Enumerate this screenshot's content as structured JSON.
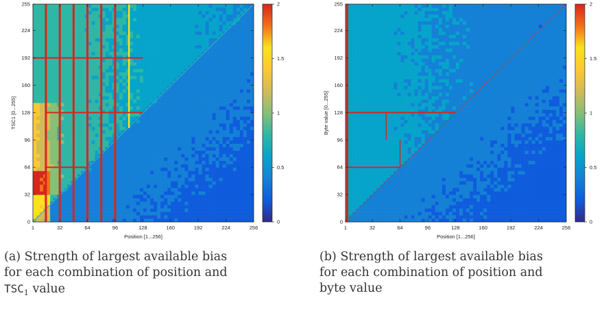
{
  "colormap": [
    "#352a87",
    "#0f5cdd",
    "#1481d6",
    "#06a4ca",
    "#2eb7a4",
    "#87bf77",
    "#d1bb59",
    "#fec832",
    "#f9e21c",
    "#f46f1b",
    "#d7261c"
  ],
  "chart_data": [
    {
      "type": "heatmap",
      "xlabel": "Position [1...256]",
      "ylabel": "TSC1 [0...255]",
      "xlim": [
        1,
        256
      ],
      "ylim": [
        0,
        255
      ],
      "x_ticks": [
        "1",
        "32",
        "64",
        "96",
        "128",
        "160",
        "192",
        "224",
        "256"
      ],
      "y_ticks": [
        "0",
        "32",
        "64",
        "96",
        "128",
        "160",
        "192",
        "224",
        "255"
      ],
      "colorbar": {
        "min": 0,
        "max": 2,
        "ticks": [
          "0",
          "0.5",
          "1",
          "1.5",
          "2"
        ]
      },
      "features": {
        "vertical_lines": [
          16,
          32,
          48,
          64,
          80,
          96
        ],
        "vertical_lines_yellow": [
          112
        ],
        "horizontal_lines": [
          {
            "y": 128,
            "x_from": 16,
            "x_to": 128
          },
          {
            "y": 64,
            "x_from": 16,
            "x_to": 64
          },
          {
            "y": 192,
            "x_from": 1,
            "x_to": 128
          }
        ]
      }
    },
    {
      "type": "heatmap",
      "xlabel": "Position [1...256]",
      "ylabel": "Byte value [0...255]",
      "xlim": [
        1,
        256
      ],
      "ylim": [
        0,
        255
      ],
      "x_ticks": [
        "1",
        "32",
        "64",
        "96",
        "128",
        "160",
        "192",
        "224",
        "256"
      ],
      "y_ticks": [
        "0",
        "32",
        "64",
        "96",
        "128",
        "160",
        "192",
        "224",
        "255"
      ],
      "colorbar": {
        "min": 0,
        "max": 2,
        "ticks": [
          "0",
          "0.5",
          "1",
          "1.5",
          "2"
        ]
      },
      "features": {
        "vertical_lines": [
          3
        ],
        "horizontal_lines": [
          {
            "y": 128,
            "x_from": 1,
            "x_to": 128
          },
          {
            "y": 64,
            "x_from": 1,
            "x_to": 64
          }
        ],
        "short_vertical_lines": [
          {
            "x": 48,
            "y_from": 96,
            "y_to": 128
          },
          {
            "x": 64,
            "y_from": 64,
            "y_to": 96
          }
        ]
      }
    }
  ],
  "captions": [
    {
      "label": "(a)",
      "text_lines": [
        "Strength of largest available bias",
        "for each combination of position and"
      ],
      "code": "TSC",
      "code_sub": "1",
      "tail": " value"
    },
    {
      "label": "(b)",
      "text_lines": [
        "Strength of largest available bias",
        "for each combination of position and",
        "byte value"
      ]
    }
  ]
}
